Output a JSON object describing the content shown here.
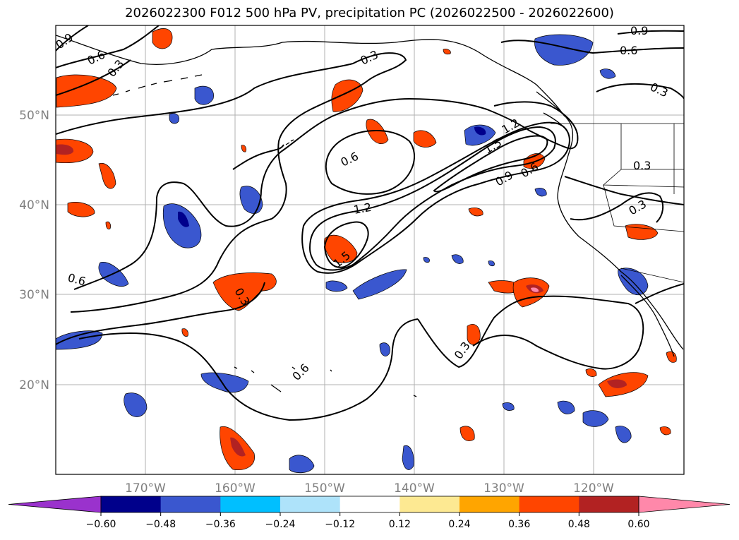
{
  "map": {
    "title": "2026022300 F012 500 hPa PV, precipitation PC (2026022500 - 2026022600)",
    "lon_labels": [
      "170°W",
      "160°W",
      "150°W",
      "140°W",
      "130°W",
      "120°W"
    ],
    "lat_labels": [
      "50°N",
      "40°N",
      "30°N",
      "20°N"
    ],
    "gridlines": true,
    "extent": {
      "lon": [
        -180,
        -110
      ],
      "lat": [
        10,
        60
      ]
    }
  },
  "contours": {
    "labels": [
      "0.9",
      "0.6",
      "0.3",
      "0.9",
      "0.6",
      "0.3",
      "0.3",
      "0.3",
      "0.3",
      "0.6",
      "1.2",
      "1.5",
      "0.9",
      "0.6",
      "1.2",
      "1.5",
      "0.6",
      "0.3",
      "0.6",
      "0.3"
    ]
  },
  "colorbar": {
    "ticks": [
      "−0.60",
      "−0.48",
      "−0.36",
      "−0.24",
      "−0.12",
      "0.12",
      "0.24",
      "0.36",
      "0.48",
      "0.60"
    ],
    "colors": [
      "#9a32cd",
      "#00008b",
      "#3a57cf",
      "#00bfff",
      "#aee3fa",
      "#ffffff",
      "#fde992",
      "#ffa500",
      "#ff4500",
      "#b22222",
      "#ff88aa",
      "#ff88aa"
    ]
  }
}
